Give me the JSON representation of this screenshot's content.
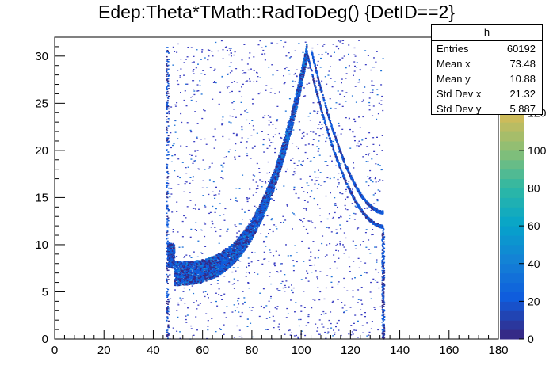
{
  "title": "Edep:Theta*TMath::RadToDeg() {DetID==2}",
  "stats": {
    "name": "h",
    "rows": [
      {
        "label": "Entries",
        "value": "60192"
      },
      {
        "label": "Mean x",
        "value": "73.48"
      },
      {
        "label": "Mean y",
        "value": "10.88"
      },
      {
        "label": "Std Dev x",
        "value": "21.32"
      },
      {
        "label": "Std Dev y",
        "value": "5.887"
      }
    ]
  },
  "chart_data": {
    "type": "heatmap",
    "title": "Edep:Theta*TMath::RadToDeg() {DetID==2}",
    "xlim": [
      0,
      180
    ],
    "ylim": [
      0,
      32
    ],
    "x_ticks": [
      0,
      20,
      40,
      60,
      80,
      100,
      120,
      140,
      160,
      180
    ],
    "y_ticks": [
      0,
      5,
      10,
      15,
      20,
      25,
      30
    ],
    "colorbar": {
      "range": [
        0,
        160
      ],
      "tick_values": [
        0,
        20,
        40,
        60,
        80,
        100,
        120
      ],
      "tick_labels": [
        "0",
        "20",
        "40",
        "60",
        "80",
        "100",
        "120"
      ],
      "palette": [
        "#352a87",
        "#0f5cdd",
        "#1481d6",
        "#06a4ca",
        "#2eb7a4",
        "#87bf77",
        "#d1bb59",
        "#fec832",
        "#f9fb0e"
      ]
    },
    "features": {
      "main_band": {
        "x_start": 45.5,
        "x_end": 102,
        "y_min": 7,
        "y_peak": 30.5
      },
      "decay_bands": [
        {
          "x_start": 102,
          "x_end": 133,
          "y_start": 30.5,
          "y_end": 12
        },
        {
          "x_start": 104,
          "x_end": 133,
          "y_start": 30.5,
          "y_end": 13.5
        }
      ],
      "vertical_edges": [
        45.5,
        133
      ],
      "entries": 60192
    }
  }
}
